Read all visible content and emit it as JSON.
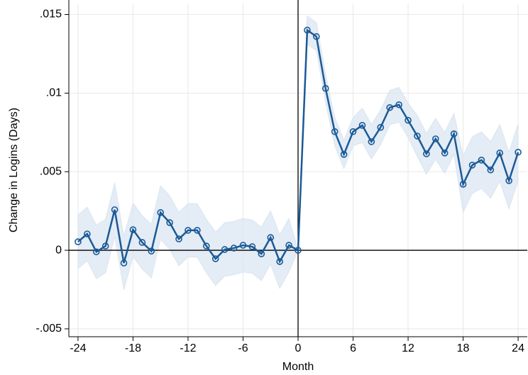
{
  "chart_data": {
    "type": "line",
    "y_label": "Change in Logins (Days)",
    "x_label": "Month",
    "x": [
      -24,
      -23,
      -22,
      -21,
      -20,
      -19,
      -18,
      -17,
      -16,
      -15,
      -14,
      -13,
      -12,
      -11,
      -10,
      -9,
      -8,
      -7,
      -6,
      -5,
      -4,
      -3,
      -2,
      -1,
      0,
      1,
      2,
      3,
      4,
      5,
      6,
      7,
      8,
      9,
      10,
      11,
      12,
      13,
      14,
      15,
      16,
      17,
      18,
      19,
      20,
      21,
      22,
      23,
      24
    ],
    "values": [
      0.00054,
      0.00104,
      -0.0001,
      0.00027,
      0.00258,
      -0.00081,
      0.00131,
      0.0005,
      -5e-05,
      0.0024,
      0.00176,
      0.00072,
      0.00127,
      0.00127,
      0.00027,
      -0.00054,
      5e-05,
      0.00014,
      0.00032,
      0.00023,
      -0.00023,
      0.00081,
      -0.00072,
      0.00032,
      0,
      0.01401,
      0.0136,
      0.0103,
      0.00755,
      0.0061,
      0.00755,
      0.00795,
      0.00691,
      0.00782,
      0.00908,
      0.00926,
      0.00827,
      0.00727,
      0.00614,
      0.00709,
      0.00619,
      0.00741,
      0.0042,
      0.00542,
      0.00574,
      0.00511,
      0.00619,
      0.00443,
      0.00624
    ],
    "lower": [
      -0.00116,
      -0.00066,
      -0.0018,
      -0.00143,
      0.00088,
      -0.00251,
      -0.00039,
      -0.0012,
      -0.00175,
      0.0007,
      6e-05,
      -0.00098,
      -0.00043,
      -0.00043,
      -0.00143,
      -0.00224,
      -0.00165,
      -0.00156,
      -0.00138,
      -0.00147,
      -0.00193,
      -0.00089,
      -0.00242,
      -0.00138,
      0,
      0.01311,
      0.0127,
      0.0094,
      0.00665,
      0.0052,
      0.00665,
      0.00685,
      0.00581,
      0.00672,
      0.00798,
      0.00816,
      0.00717,
      0.00597,
      0.00484,
      0.00579,
      0.00489,
      0.00611,
      0.0024,
      0.00362,
      0.00394,
      0.00331,
      0.00439,
      0.00263,
      0.00444
    ],
    "upper": [
      0.00224,
      0.00274,
      0.0016,
      0.00197,
      0.00428,
      0.00089,
      0.00301,
      0.0022,
      0.00165,
      0.0041,
      0.00346,
      0.00242,
      0.00297,
      0.00297,
      0.00197,
      0.00116,
      0.00175,
      0.00184,
      0.00202,
      0.00193,
      0.00147,
      0.00251,
      0.00098,
      0.00202,
      0,
      0.01491,
      0.0145,
      0.0112,
      0.00845,
      0.007,
      0.00845,
      0.00905,
      0.00801,
      0.00892,
      0.01018,
      0.01036,
      0.00937,
      0.00857,
      0.00744,
      0.00839,
      0.00749,
      0.00871,
      0.006,
      0.00722,
      0.00754,
      0.00691,
      0.00799,
      0.00623,
      0.00804
    ],
    "color": "#1a5a96",
    "band_color": "#dbe5f1",
    "xlim": [
      -25,
      25
    ],
    "xticks": [
      -24,
      -18,
      -12,
      -6,
      0,
      6,
      12,
      18,
      24
    ],
    "ylim": [
      -0.0055,
      0.0157
    ],
    "yticks": [
      {
        "value": -0.005,
        "label": "-.005"
      },
      0,
      {
        "value": 0.005,
        "label": ".005"
      },
      {
        "value": 0.01,
        "label": ".01"
      },
      {
        "value": 0.015,
        "label": ".015"
      }
    ],
    "grid": true
  }
}
